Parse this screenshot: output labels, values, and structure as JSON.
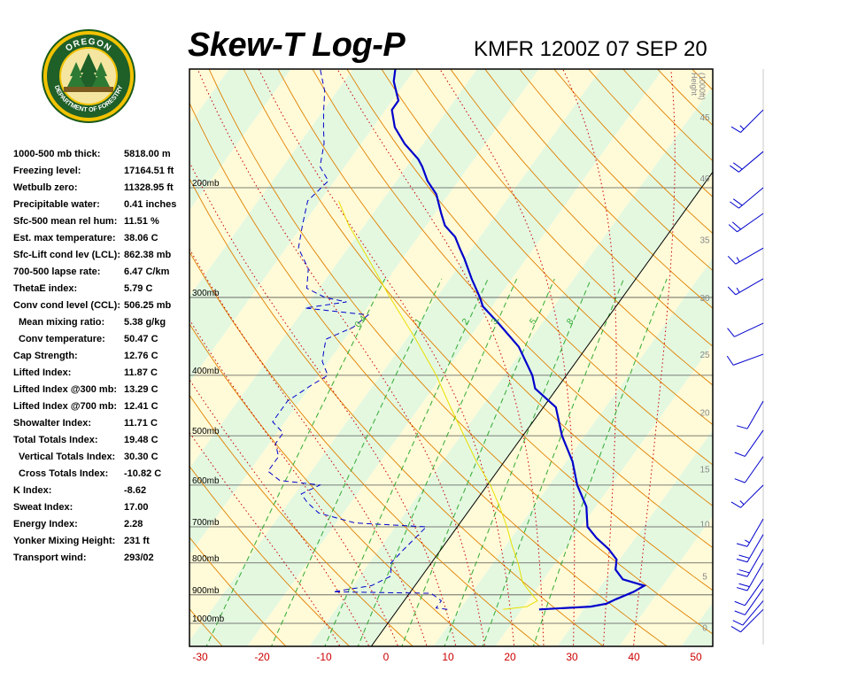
{
  "header": {
    "title": "Skew-T Log-P",
    "subtitle": "KMFR 1200Z 07 SEP 20"
  },
  "logo": {
    "top_text": "OREGON",
    "bottom_text": "DEPARTMENT OF FORESTRY"
  },
  "stats": [
    {
      "label": "1000-500 mb thick:",
      "value": "5818.00 m",
      "indent": false
    },
    {
      "label": "Freezing level:",
      "value": "17164.51 ft",
      "indent": false
    },
    {
      "label": "Wetbulb zero:",
      "value": "11328.95 ft",
      "indent": false
    },
    {
      "label": "Precipitable water:",
      "value": "0.41 inches",
      "indent": false
    },
    {
      "label": "Sfc-500 mean rel hum:",
      "value": "11.51 %",
      "indent": false
    },
    {
      "label": "Est. max temperature:",
      "value": "38.06 C",
      "indent": false
    },
    {
      "label": "Sfc-Lift cond lev (LCL):",
      "value": "862.38 mb",
      "indent": false
    },
    {
      "label": "700-500 lapse rate:",
      "value": "6.47 C/km",
      "indent": false
    },
    {
      "label": "ThetaE index:",
      "value": "5.79 C",
      "indent": false
    },
    {
      "label": "Conv cond level (CCL):",
      "value": "506.25 mb",
      "indent": false
    },
    {
      "label": "Mean mixing ratio:",
      "value": "5.38 g/kg",
      "indent": true
    },
    {
      "label": "Conv temperature:",
      "value": "50.47 C",
      "indent": true
    },
    {
      "label": "Cap Strength:",
      "value": "12.76 C",
      "indent": false
    },
    {
      "label": "Lifted Index:",
      "value": "11.87 C",
      "indent": false
    },
    {
      "label": "Lifted Index @300 mb:",
      "value": "13.29 C",
      "indent": false
    },
    {
      "label": "Lifted Index @700 mb:",
      "value": "12.41 C",
      "indent": false
    },
    {
      "label": "Showalter Index:",
      "value": "11.71 C",
      "indent": false
    },
    {
      "label": "Total Totals Index:",
      "value": "19.48 C",
      "indent": false
    },
    {
      "label": "Vertical Totals Index:",
      "value": "30.30 C",
      "indent": true
    },
    {
      "label": "Cross Totals Index:",
      "value": "-10.82 C",
      "indent": true
    },
    {
      "label": "K Index:",
      "value": "-8.62",
      "indent": false
    },
    {
      "label": "Sweat Index:",
      "value": "17.00",
      "indent": false
    },
    {
      "label": "Energy Index:",
      "value": "2.28",
      "indent": false
    },
    {
      "label": "Yonker Mixing Height:",
      "value": "231 ft",
      "indent": false
    },
    {
      "label": "Transport wind:",
      "value": "293/02",
      "indent": false
    }
  ],
  "colors": {
    "temperature": "#0000cc",
    "dewpoint": "#0000cc",
    "parcel": "#e8e000",
    "dry_adiabat": "#e08000",
    "moist_adiabat": "#cc0000",
    "mixing_ratio": "#33aa33",
    "isobar": "#555555",
    "x_tick": "#cc0000",
    "height_label": "#888888",
    "band_yellow": "#fffbd8",
    "band_green": "#e4f8e0"
  },
  "chart_data": {
    "type": "skew-t",
    "title": "Skew-T Log-P",
    "subtitle": "KMFR 1200Z 07 SEP 20",
    "xlabel": "",
    "x_unit": "C",
    "x_ticks": [
      -30,
      -20,
      -10,
      0,
      10,
      20,
      30,
      40,
      50
    ],
    "pressure_levels": [
      {
        "p": 1000,
        "label": "1000mb"
      },
      {
        "p": 900,
        "label": "900mb"
      },
      {
        "p": 800,
        "label": "800mb"
      },
      {
        "p": 700,
        "label": "700mb"
      },
      {
        "p": 600,
        "label": "600mb"
      },
      {
        "p": 500,
        "label": "500mb"
      },
      {
        "p": 400,
        "label": "400mb"
      },
      {
        "p": 300,
        "label": "300mb"
      },
      {
        "p": 200,
        "label": "200mb"
      }
    ],
    "height_axis": {
      "label_lines": [
        "Height",
        "(1000ft)"
      ],
      "ticks": [
        {
          "p": 1015,
          "ft": "0"
        },
        {
          "p": 840,
          "ft": "5"
        },
        {
          "p": 692,
          "ft": "10"
        },
        {
          "p": 565,
          "ft": "15"
        },
        {
          "p": 458,
          "ft": "20"
        },
        {
          "p": 370,
          "ft": "25"
        },
        {
          "p": 300,
          "ft": "30"
        },
        {
          "p": 242,
          "ft": "35"
        },
        {
          "p": 193,
          "ft": "40"
        },
        {
          "p": 154,
          "ft": "45"
        },
        {
          "p": 120,
          "ft": "50"
        }
      ]
    },
    "mixing_ratio_labels": [
      "0.4",
      "1",
      "2",
      "3",
      "5",
      "8"
    ],
    "mixing_ratios_gkg": [
      0.4,
      1,
      2,
      3,
      5,
      8,
      12,
      20
    ],
    "series": [
      {
        "name": "Temperature",
        "points": [
          {
            "p": 950,
            "t": 22.8
          },
          {
            "p": 940,
            "t": 30.8
          },
          {
            "p": 930,
            "t": 33.0
          },
          {
            "p": 915,
            "t": 34.0
          },
          {
            "p": 890,
            "t": 36.0
          },
          {
            "p": 870,
            "t": 37.0
          },
          {
            "p": 850,
            "t": 32.8
          },
          {
            "p": 820,
            "t": 30.5
          },
          {
            "p": 790,
            "t": 29.5
          },
          {
            "p": 760,
            "t": 27.0
          },
          {
            "p": 730,
            "t": 23.8
          },
          {
            "p": 700,
            "t": 21.0
          },
          {
            "p": 650,
            "t": 18.5
          },
          {
            "p": 600,
            "t": 14.5
          },
          {
            "p": 550,
            "t": 11.0
          },
          {
            "p": 500,
            "t": 6.3
          },
          {
            "p": 450,
            "t": 2.0
          },
          {
            "p": 420,
            "t": -3.5
          },
          {
            "p": 400,
            "t": -5.5
          },
          {
            "p": 360,
            "t": -11.0
          },
          {
            "p": 330,
            "t": -17.0
          },
          {
            "p": 310,
            "t": -21.5
          },
          {
            "p": 300,
            "t": -23.0
          },
          {
            "p": 280,
            "t": -26.5
          },
          {
            "p": 260,
            "t": -30.0
          },
          {
            "p": 250,
            "t": -32.0
          },
          {
            "p": 240,
            "t": -34.0
          },
          {
            "p": 230,
            "t": -37.0
          },
          {
            "p": 220,
            "t": -39.0
          },
          {
            "p": 205,
            "t": -42.0
          },
          {
            "p": 195,
            "t": -45.0
          },
          {
            "p": 185,
            "t": -47.5
          },
          {
            "p": 180,
            "t": -49.0
          },
          {
            "p": 170,
            "t": -53.0
          },
          {
            "p": 160,
            "t": -56.5
          },
          {
            "p": 150,
            "t": -59.0
          },
          {
            "p": 145,
            "t": -59.0
          },
          {
            "p": 135,
            "t": -62.0
          },
          {
            "p": 125,
            "t": -64.0
          },
          {
            "p": 118,
            "t": -65.0
          },
          {
            "p": 110,
            "t": -65.0
          },
          {
            "p": 105,
            "t": -62.0
          },
          {
            "p": 100,
            "t": -59.5
          }
        ]
      },
      {
        "name": "Dewpoint",
        "points": [
          {
            "p": 950,
            "t": 8.0
          },
          {
            "p": 945,
            "t": 6.0
          },
          {
            "p": 920,
            "t": 6.0
          },
          {
            "p": 895,
            "t": 3.5
          },
          {
            "p": 890,
            "t": -12.5
          },
          {
            "p": 870,
            "t": -7.0
          },
          {
            "p": 840,
            "t": -5.0
          },
          {
            "p": 800,
            "t": -6.5
          },
          {
            "p": 760,
            "t": -6.0
          },
          {
            "p": 730,
            "t": -5.5
          },
          {
            "p": 700,
            "t": -5.0
          },
          {
            "p": 690,
            "t": -17.0
          },
          {
            "p": 665,
            "t": -24.0
          },
          {
            "p": 640,
            "t": -27.0
          },
          {
            "p": 620,
            "t": -29.0
          },
          {
            "p": 600,
            "t": -27.0
          },
          {
            "p": 590,
            "t": -34.0
          },
          {
            "p": 570,
            "t": -37.0
          },
          {
            "p": 540,
            "t": -37.0
          },
          {
            "p": 515,
            "t": -39.0
          },
          {
            "p": 495,
            "t": -39.0
          },
          {
            "p": 475,
            "t": -42.0
          },
          {
            "p": 440,
            "t": -42.0
          },
          {
            "p": 415,
            "t": -40.0
          },
          {
            "p": 400,
            "t": -38.5
          },
          {
            "p": 380,
            "t": -41.0
          },
          {
            "p": 365,
            "t": -42.0
          },
          {
            "p": 350,
            "t": -43.0
          },
          {
            "p": 335,
            "t": -40.0
          },
          {
            "p": 320,
            "t": -39.0
          },
          {
            "p": 312,
            "t": -50.0
          },
          {
            "p": 305,
            "t": -44.0
          },
          {
            "p": 300,
            "t": -48.0
          },
          {
            "p": 290,
            "t": -52.0
          },
          {
            "p": 270,
            "t": -54.0
          },
          {
            "p": 250,
            "t": -58.0
          },
          {
            "p": 230,
            "t": -60.0
          },
          {
            "p": 210,
            "t": -62.0
          },
          {
            "p": 195,
            "t": -61.0
          },
          {
            "p": 185,
            "t": -64.0
          },
          {
            "p": 170,
            "t": -66.0
          },
          {
            "p": 160,
            "t": -68.0
          },
          {
            "p": 150,
            "t": -70.0
          },
          {
            "p": 140,
            "t": -72.0
          },
          {
            "p": 130,
            "t": -75.0
          },
          {
            "p": 120,
            "t": -78.0
          },
          {
            "p": 110,
            "t": -80.0
          },
          {
            "p": 100,
            "t": -82.0
          }
        ]
      },
      {
        "name": "Parcel",
        "points": [
          {
            "p": 950,
            "t": 17.0
          },
          {
            "p": 940,
            "t": 20.5
          },
          {
            "p": 920,
            "t": 21.5
          },
          {
            "p": 900,
            "t": 20.0
          },
          {
            "p": 880,
            "t": 18.5
          },
          {
            "p": 860,
            "t": 17.0
          },
          {
            "p": 800,
            "t": 14.0
          },
          {
            "p": 750,
            "t": 11.0
          },
          {
            "p": 700,
            "t": 8.0
          },
          {
            "p": 650,
            "t": 4.5
          },
          {
            "p": 600,
            "t": 0.5
          },
          {
            "p": 550,
            "t": -4.5
          },
          {
            "p": 500,
            "t": -9.5
          },
          {
            "p": 450,
            "t": -15.0
          },
          {
            "p": 400,
            "t": -21.0
          },
          {
            "p": 350,
            "t": -28.5
          },
          {
            "p": 300,
            "t": -37.5
          },
          {
            "p": 260,
            "t": -45.5
          },
          {
            "p": 230,
            "t": -52.5
          },
          {
            "p": 210,
            "t": -57.0
          }
        ]
      }
    ],
    "wind_profile": [
      {
        "p": 950,
        "dir": 225,
        "spd": 10
      },
      {
        "p": 920,
        "dir": 220,
        "spd": 10
      },
      {
        "p": 880,
        "dir": 215,
        "spd": 10
      },
      {
        "p": 850,
        "dir": 215,
        "spd": 10
      },
      {
        "p": 800,
        "dir": 210,
        "spd": 20
      },
      {
        "p": 760,
        "dir": 210,
        "spd": 20
      },
      {
        "p": 720,
        "dir": 210,
        "spd": 20
      },
      {
        "p": 680,
        "dir": 210,
        "spd": 15
      },
      {
        "p": 600,
        "dir": 225,
        "spd": 15
      },
      {
        "p": 540,
        "dir": 215,
        "spd": 10
      },
      {
        "p": 490,
        "dir": 215,
        "spd": 10
      },
      {
        "p": 440,
        "dir": 210,
        "spd": 10
      },
      {
        "p": 370,
        "dir": 250,
        "spd": 10
      },
      {
        "p": 330,
        "dir": 245,
        "spd": 10
      },
      {
        "p": 280,
        "dir": 240,
        "spd": 15
      },
      {
        "p": 250,
        "dir": 240,
        "spd": 15
      },
      {
        "p": 220,
        "dir": 235,
        "spd": 20
      },
      {
        "p": 200,
        "dir": 230,
        "spd": 20
      },
      {
        "p": 175,
        "dir": 230,
        "spd": 20
      },
      {
        "p": 150,
        "dir": 225,
        "spd": 15
      },
      {
        "p": 125,
        "dir": 260,
        "spd": 20
      },
      {
        "p": 110,
        "dir": 265,
        "spd": 25
      }
    ],
    "grid": true
  }
}
